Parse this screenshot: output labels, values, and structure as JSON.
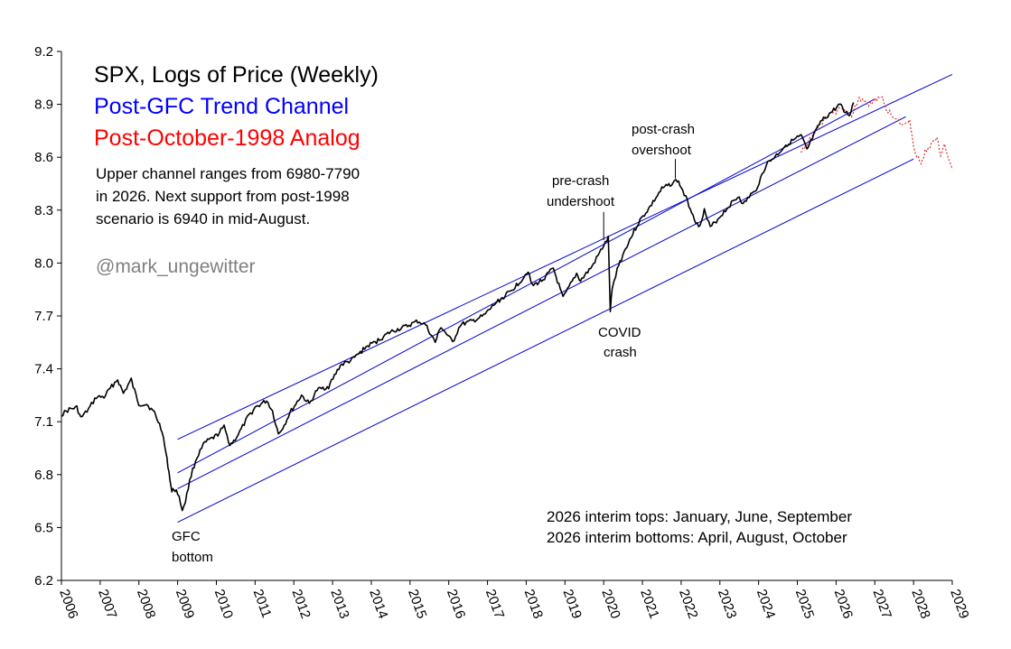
{
  "chart_data": {
    "type": "line",
    "title": "SPX, Logs of Price (Weekly)",
    "subtitle_1": "Post-GFC Trend Channel",
    "subtitle_2": "Post-October-1998 Analog",
    "ylim": [
      6.2,
      9.2
    ],
    "yticks": [
      "6.2",
      "6.5",
      "6.8",
      "7.1",
      "7.4",
      "7.7",
      "8.0",
      "8.3",
      "8.6",
      "8.9",
      "9.2"
    ],
    "xlim": [
      2006,
      2029
    ],
    "xticks": [
      "2006",
      "2007",
      "2008",
      "2009",
      "2010",
      "2011",
      "2012",
      "2013",
      "2014",
      "2015",
      "2016",
      "2017",
      "2018",
      "2019",
      "2020",
      "2021",
      "2022",
      "2023",
      "2024",
      "2025",
      "2026",
      "2027",
      "2028",
      "2029"
    ],
    "colors": {
      "price": "#000000",
      "channel": "#0000cc",
      "analog": "#e03030",
      "subtitle_1": "#0000ff",
      "subtitle_2": "#ff0000",
      "handle": "#808080"
    },
    "series": [
      {
        "name": "SPX log price",
        "x": [
          2006.0,
          2006.2,
          2006.4,
          2006.5,
          2006.7,
          2006.9,
          2007.1,
          2007.3,
          2007.45,
          2007.6,
          2007.8,
          2007.85,
          2008.0,
          2008.2,
          2008.4,
          2008.5,
          2008.6,
          2008.7,
          2008.75,
          2008.8,
          2008.85,
          2008.9,
          2009.0,
          2009.12,
          2009.2,
          2009.35,
          2009.5,
          2009.7,
          2010.0,
          2010.2,
          2010.35,
          2010.45,
          2010.6,
          2010.8,
          2011.0,
          2011.3,
          2011.45,
          2011.6,
          2011.75,
          2011.9,
          2012.2,
          2012.4,
          2012.6,
          2012.9,
          2013.2,
          2013.5,
          2013.9,
          2014.1,
          2014.5,
          2014.9,
          2015.2,
          2015.4,
          2015.65,
          2015.8,
          2016.1,
          2016.3,
          2016.6,
          2016.9,
          2017.2,
          2017.6,
          2017.9,
          2018.05,
          2018.15,
          2018.4,
          2018.7,
          2018.95,
          2019.3,
          2019.4,
          2019.7,
          2020.0,
          2020.12,
          2020.17,
          2020.22,
          2020.35,
          2020.6,
          2020.9,
          2021.2,
          2021.5,
          2021.9,
          2022.0,
          2022.2,
          2022.45,
          2022.6,
          2022.75,
          2022.95,
          2023.3,
          2023.5,
          2023.6,
          2023.8,
          2023.9,
          2024.2,
          2024.5,
          2024.7,
          2025.0,
          2025.1,
          2025.25,
          2025.35,
          2025.6,
          2025.9,
          2026.1,
          2026.2,
          2026.35,
          2026.45
        ],
        "y": [
          7.14,
          7.17,
          7.18,
          7.12,
          7.17,
          7.24,
          7.24,
          7.3,
          7.34,
          7.26,
          7.34,
          7.3,
          7.2,
          7.2,
          7.15,
          7.1,
          7.05,
          6.92,
          6.85,
          6.78,
          6.7,
          6.72,
          6.7,
          6.6,
          6.65,
          6.8,
          6.9,
          6.98,
          7.02,
          7.07,
          6.97,
          6.99,
          7.04,
          7.12,
          7.18,
          7.22,
          7.16,
          7.03,
          7.08,
          7.15,
          7.25,
          7.2,
          7.28,
          7.3,
          7.42,
          7.45,
          7.53,
          7.55,
          7.61,
          7.64,
          7.67,
          7.65,
          7.55,
          7.64,
          7.55,
          7.65,
          7.67,
          7.7,
          7.77,
          7.84,
          7.91,
          7.96,
          7.87,
          7.9,
          7.97,
          7.8,
          7.94,
          7.9,
          7.98,
          8.1,
          8.14,
          7.73,
          7.85,
          7.97,
          8.1,
          8.23,
          8.32,
          8.42,
          8.47,
          8.43,
          8.33,
          8.2,
          8.3,
          8.2,
          8.25,
          8.34,
          8.38,
          8.33,
          8.39,
          8.4,
          8.56,
          8.62,
          8.67,
          8.71,
          8.72,
          8.64,
          8.69,
          8.8,
          8.86,
          8.9,
          8.86,
          8.84,
          8.91
        ]
      },
      {
        "name": "Post-October-1998 Analog",
        "x": [
          2025.1,
          2025.3,
          2025.6,
          2025.8,
          2026.0,
          2026.2,
          2026.4,
          2026.6,
          2026.8,
          2027.0,
          2027.2,
          2027.3,
          2027.5,
          2027.7,
          2027.9,
          2028.0,
          2028.2,
          2028.3,
          2028.5,
          2028.6,
          2028.7,
          2028.8,
          2029.0
        ],
        "y": [
          8.62,
          8.7,
          8.78,
          8.84,
          8.86,
          8.88,
          8.84,
          8.93,
          8.9,
          8.92,
          8.94,
          8.87,
          8.83,
          8.78,
          8.82,
          8.66,
          8.55,
          8.64,
          8.68,
          8.72,
          8.62,
          8.66,
          8.53
        ]
      }
    ],
    "channel_lines": [
      {
        "x": [
          2009.0,
          2029.0
        ],
        "y": [
          7.0,
          9.07
        ]
      },
      {
        "x": [
          2009.0,
          2027.0
        ],
        "y": [
          6.81,
          8.93
        ]
      },
      {
        "x": [
          2009.0,
          2027.8
        ],
        "y": [
          6.72,
          8.83
        ]
      },
      {
        "x": [
          2009.0,
          2028.0
        ],
        "y": [
          6.53,
          8.59
        ]
      }
    ],
    "annotations": {
      "note_line_1": "Upper channel ranges from 6980-7790",
      "note_line_2": "in 2026. Next support from post-1998",
      "note_line_3": "scenario is 6940 in mid-August.",
      "handle": "@mark_ungewitter",
      "gfc_1": "GFC",
      "gfc_2": "bottom",
      "precrash_1": "pre-crash",
      "precrash_2": "undershoot",
      "postcrash_1": "post-crash",
      "postcrash_2": "overshoot",
      "covid_1": "COVID",
      "covid_2": "crash",
      "tops": "2026 interim tops: January, June, September",
      "bottoms": "2026 interim bottoms: April, August, October"
    }
  }
}
